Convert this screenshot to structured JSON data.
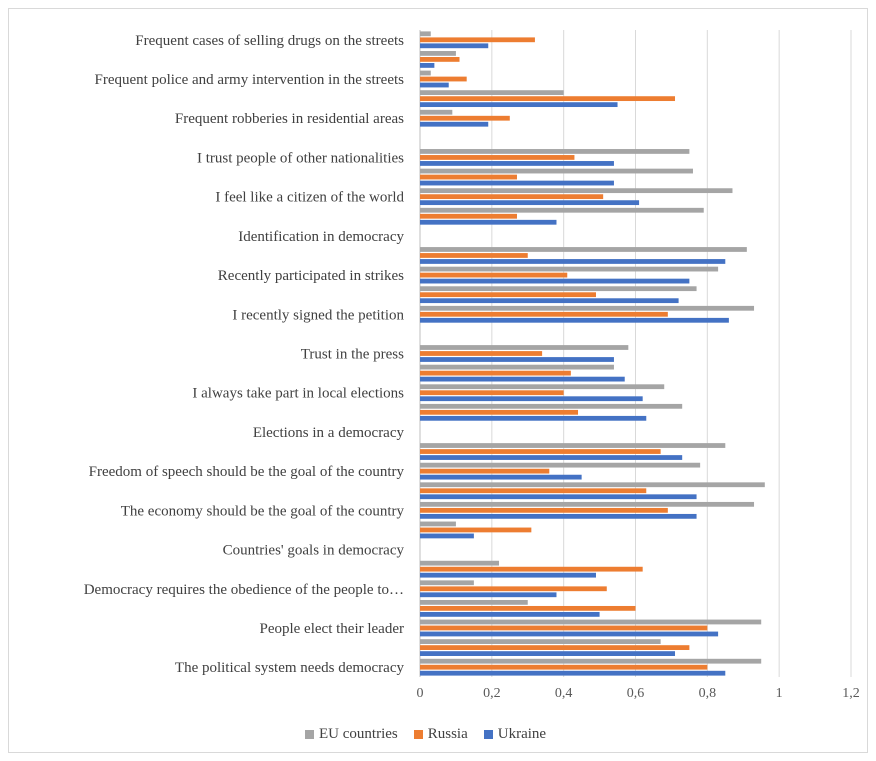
{
  "chart_data": {
    "type": "bar",
    "orientation": "horizontal",
    "rows": [
      {
        "label": "Frequent cases of selling drugs on the streets",
        "values": [
          0.03,
          0.32,
          0.19
        ]
      },
      {
        "label": "",
        "values": [
          0.1,
          0.11,
          0.04
        ]
      },
      {
        "label": "Frequent police and army intervention in the streets",
        "values": [
          0.03,
          0.13,
          0.08
        ]
      },
      {
        "label": "",
        "values": [
          0.4,
          0.71,
          0.55
        ]
      },
      {
        "label": "Frequent robberies in residential areas",
        "values": [
          0.09,
          0.25,
          0.19
        ]
      },
      {
        "label": "",
        "values": [
          null,
          null,
          null
        ]
      },
      {
        "label": "I trust people of other nationalities",
        "values": [
          0.75,
          0.43,
          0.54
        ]
      },
      {
        "label": "",
        "values": [
          0.76,
          0.27,
          0.54
        ]
      },
      {
        "label": "I feel like a citizen of the world",
        "values": [
          0.87,
          0.51,
          0.61
        ]
      },
      {
        "label": "",
        "values": [
          0.79,
          0.27,
          0.38
        ]
      },
      {
        "label": "Identification in democracy",
        "values": [
          null,
          null,
          null
        ]
      },
      {
        "label": "",
        "values": [
          0.91,
          0.3,
          0.85
        ]
      },
      {
        "label": "Recently participated in strikes",
        "values": [
          0.83,
          0.41,
          0.75
        ]
      },
      {
        "label": "",
        "values": [
          0.77,
          0.49,
          0.72
        ]
      },
      {
        "label": "I recently signed the petition",
        "values": [
          0.93,
          0.69,
          0.86
        ]
      },
      {
        "label": "",
        "values": [
          null,
          null,
          null
        ]
      },
      {
        "label": "Trust in the press",
        "values": [
          0.58,
          0.34,
          0.54
        ]
      },
      {
        "label": "",
        "values": [
          0.54,
          0.42,
          0.57
        ]
      },
      {
        "label": "I always take part in local elections",
        "values": [
          0.68,
          0.4,
          0.62
        ]
      },
      {
        "label": "",
        "values": [
          0.73,
          0.44,
          0.63
        ]
      },
      {
        "label": "Elections in a democracy",
        "values": [
          null,
          null,
          null
        ]
      },
      {
        "label": "",
        "values": [
          0.85,
          0.67,
          0.73
        ]
      },
      {
        "label": "Freedom of speech should be the goal of the country",
        "values": [
          0.78,
          0.36,
          0.45
        ]
      },
      {
        "label": "",
        "values": [
          0.96,
          0.63,
          0.77
        ]
      },
      {
        "label": "The economy should be the goal of the country",
        "values": [
          0.93,
          0.69,
          0.77
        ]
      },
      {
        "label": "",
        "values": [
          0.1,
          0.31,
          0.15
        ]
      },
      {
        "label": "Countries' goals in democracy",
        "values": [
          null,
          null,
          null
        ]
      },
      {
        "label": "",
        "values": [
          0.22,
          0.62,
          0.49
        ]
      },
      {
        "label": "Democracy requires the obedience of the people to…",
        "values": [
          0.15,
          0.52,
          0.38
        ]
      },
      {
        "label": "",
        "values": [
          0.3,
          0.6,
          0.5
        ]
      },
      {
        "label": "People elect their leader",
        "values": [
          0.95,
          0.8,
          0.83
        ]
      },
      {
        "label": "",
        "values": [
          0.67,
          0.75,
          0.71
        ]
      },
      {
        "label": "The political system needs democracy",
        "values": [
          0.95,
          0.8,
          0.85
        ]
      }
    ],
    "series": [
      {
        "name": "EU countries",
        "color": "#a5a5a5"
      },
      {
        "name": "Russia",
        "color": "#ed7d31"
      },
      {
        "name": "Ukraine",
        "color": "#4472c4"
      }
    ],
    "x_ticks": [
      "0",
      "0,2",
      "0,4",
      "0,6",
      "0,8",
      "1",
      "1,2"
    ],
    "xlim": [
      0,
      1.2
    ],
    "grid": true,
    "legend_position": "bottom"
  }
}
